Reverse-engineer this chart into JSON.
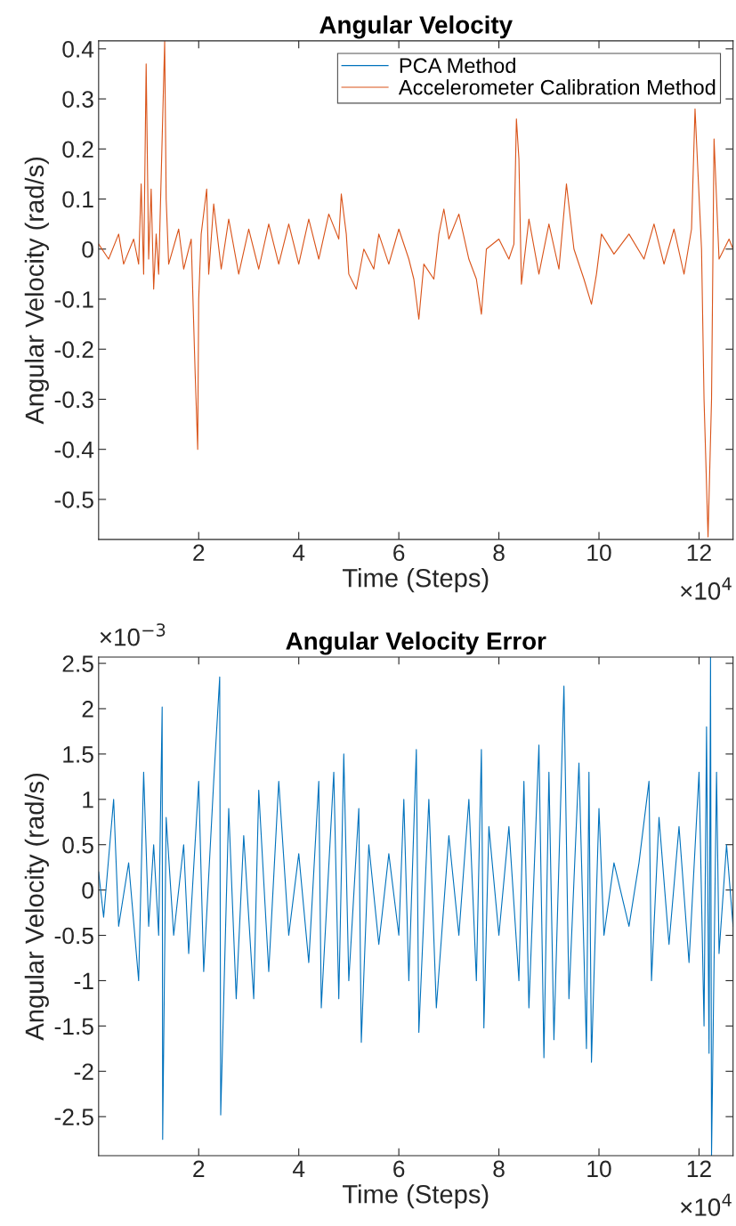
{
  "chart_data": [
    {
      "type": "line",
      "title": "Angular Velocity",
      "xlabel": "Time (Steps)",
      "ylabel": "Angular Velocity (rad/s)",
      "x": [
        0,
        0.2,
        0.4,
        0.5,
        0.7,
        0.8,
        0.85,
        0.9,
        0.95,
        1.0,
        1.05,
        1.1,
        1.15,
        1.2,
        1.32,
        1.35,
        1.4,
        1.6,
        1.7,
        1.85,
        1.93,
        1.98,
        2.0,
        2.05,
        2.16,
        2.2,
        2.3,
        2.45,
        2.6,
        2.8,
        3.0,
        3.2,
        3.4,
        3.6,
        3.8,
        4.0,
        4.2,
        4.4,
        4.6,
        4.8,
        4.85,
        4.95,
        5.0,
        5.15,
        5.3,
        5.5,
        5.6,
        5.8,
        6.0,
        6.2,
        6.3,
        6.4,
        6.5,
        6.7,
        6.8,
        6.9,
        7.0,
        7.2,
        7.4,
        7.55,
        7.65,
        7.75,
        8.0,
        8.2,
        8.3,
        8.35,
        8.4,
        8.45,
        8.6,
        8.8,
        9.0,
        9.2,
        9.35,
        9.5,
        9.7,
        9.85,
        9.95,
        10.05,
        10.3,
        10.6,
        10.9,
        11.1,
        11.3,
        11.5,
        11.7,
        11.85,
        11.92,
        11.98,
        12.05,
        12.1,
        12.18,
        12.25,
        12.3,
        12.35,
        12.4,
        12.6,
        12.68
      ],
      "series": [
        {
          "name": "PCA Method",
          "color": "#0072bd",
          "values": [
            null,
            null,
            null,
            null,
            null,
            null,
            null,
            null,
            null,
            null,
            null,
            null,
            null,
            null,
            null,
            null,
            null,
            null,
            null,
            null,
            null,
            null,
            null,
            null,
            null,
            null,
            null,
            null,
            null,
            null,
            null,
            null,
            null,
            null,
            null,
            null,
            null,
            null,
            null,
            null,
            null,
            null,
            null,
            null,
            null,
            null,
            null,
            null,
            null,
            null,
            null,
            null,
            null,
            null,
            null,
            null,
            null,
            null,
            null,
            null,
            null,
            null,
            null,
            null,
            null,
            null,
            null,
            null,
            null,
            null,
            null,
            null,
            null,
            null,
            null,
            null,
            null,
            null,
            null,
            null,
            null,
            null,
            null,
            null,
            null,
            null,
            null,
            null,
            null,
            null,
            null,
            null,
            null,
            null,
            null,
            null,
            null
          ]
        },
        {
          "name": "Accelerometer Calibration Method",
          "color": "#d95319",
          "values": [
            0.01,
            -0.02,
            0.03,
            -0.03,
            0.02,
            -0.03,
            0.13,
            -0.05,
            0.37,
            -0.02,
            0.12,
            -0.08,
            0.03,
            -0.05,
            0.415,
            0.1,
            -0.03,
            0.04,
            -0.04,
            0.02,
            -0.25,
            -0.4,
            -0.1,
            0.03,
            0.12,
            -0.05,
            0.09,
            -0.04,
            0.06,
            -0.05,
            0.04,
            -0.04,
            0.05,
            -0.03,
            0.05,
            -0.03,
            0.06,
            -0.02,
            0.07,
            0.02,
            0.11,
            0.03,
            -0.05,
            -0.08,
            0.0,
            -0.04,
            0.03,
            -0.03,
            0.04,
            -0.02,
            -0.06,
            -0.14,
            -0.03,
            -0.06,
            0.03,
            0.08,
            0.02,
            0.07,
            -0.02,
            -0.06,
            -0.13,
            0.0,
            0.02,
            -0.02,
            0.01,
            0.26,
            0.18,
            -0.07,
            0.06,
            -0.05,
            0.05,
            -0.04,
            0.13,
            0.0,
            -0.06,
            -0.11,
            -0.05,
            0.03,
            -0.01,
            0.03,
            -0.02,
            0.05,
            -0.03,
            0.04,
            -0.05,
            0.04,
            0.28,
            0.15,
            0.0,
            -0.3,
            -0.575,
            -0.3,
            0.22,
            0.1,
            -0.02,
            0.02,
            0.0
          ]
        }
      ],
      "xlim": [
        0,
        12.68
      ],
      "ylim": [
        -0.58,
        0.416
      ],
      "xticks": [
        2,
        4,
        6,
        8,
        10,
        12
      ],
      "yticks": [
        -0.5,
        -0.4,
        -0.3,
        -0.2,
        -0.1,
        0,
        0.1,
        0.2,
        0.3,
        0.4
      ],
      "annotations": [
        "×10$^{4}$"
      ],
      "legend": "top right",
      "grid": false,
      "marker": "none",
      "line_style": "solid"
    },
    {
      "type": "line",
      "title": "Angular Velocity Error",
      "xlabel": "Time (Steps)",
      "ylabel": "Angular Velocity (rad/s)",
      "x": [
        0,
        0.1,
        0.3,
        0.4,
        0.6,
        0.8,
        0.9,
        1.0,
        1.1,
        1.2,
        1.27,
        1.28,
        1.35,
        1.5,
        1.7,
        1.8,
        2.0,
        2.1,
        2.3,
        2.42,
        2.44,
        2.6,
        2.75,
        2.9,
        3.1,
        3.2,
        3.4,
        3.6,
        3.8,
        4.0,
        4.2,
        4.4,
        4.45,
        4.7,
        4.8,
        4.9,
        5.0,
        5.2,
        5.25,
        5.4,
        5.6,
        5.8,
        6.0,
        6.1,
        6.2,
        6.35,
        6.4,
        6.6,
        6.75,
        7.0,
        7.2,
        7.4,
        7.55,
        7.65,
        7.7,
        7.8,
        8.0,
        8.2,
        8.4,
        8.5,
        8.6,
        8.8,
        8.9,
        9.0,
        9.1,
        9.3,
        9.4,
        9.6,
        9.75,
        9.8,
        9.85,
        10.0,
        10.1,
        10.3,
        10.6,
        10.8,
        11.0,
        11.05,
        11.2,
        11.4,
        11.6,
        11.8,
        12.0,
        12.1,
        12.15,
        12.2,
        12.23,
        12.25,
        12.35,
        12.4,
        12.55,
        12.68
      ],
      "series": [
        {
          "color": "#0072bd",
          "values": [
            0.2,
            -0.3,
            1.0,
            -0.4,
            0.3,
            -1.0,
            1.3,
            -0.4,
            0.5,
            -0.5,
            2.02,
            -2.75,
            0.8,
            -0.5,
            0.5,
            -0.7,
            1.2,
            -0.9,
            1.2,
            2.35,
            -2.48,
            0.9,
            -1.2,
            0.6,
            -1.2,
            1.1,
            -0.9,
            1.2,
            -0.5,
            0.4,
            -0.8,
            1.2,
            -1.3,
            1.3,
            -1.2,
            1.5,
            -1.0,
            0.9,
            -1.68,
            0.5,
            -0.6,
            0.4,
            -0.5,
            1.0,
            -1.0,
            1.55,
            -1.57,
            1.0,
            -1.3,
            0.6,
            -0.5,
            1.0,
            -1.0,
            1.55,
            -1.52,
            0.7,
            -0.5,
            0.7,
            -1.0,
            1.2,
            -1.3,
            1.6,
            -1.85,
            1.3,
            -1.65,
            2.25,
            -1.2,
            1.4,
            -1.75,
            1.3,
            -1.9,
            0.9,
            -0.5,
            0.3,
            -0.4,
            0.3,
            1.2,
            -1.0,
            0.8,
            -0.6,
            0.7,
            -0.8,
            1.3,
            -1.5,
            1.8,
            -1.8,
            2.57,
            -2.93,
            1.3,
            -0.7,
            0.5,
            -0.4
          ]
        }
      ],
      "xlim": [
        0,
        12.68
      ],
      "ylim": [
        -2.93,
        2.57
      ],
      "xticks": [
        2,
        4,
        6,
        8,
        10,
        12
      ],
      "yticks": [
        -2.5,
        -2,
        -1.5,
        -1,
        -0.5,
        0,
        0.5,
        1,
        1.5,
        2,
        2.5
      ],
      "annotations": [
        "×10$^{4}$",
        "×10$^{−3}$"
      ],
      "grid": false,
      "marker": "none",
      "line_style": "solid"
    }
  ]
}
